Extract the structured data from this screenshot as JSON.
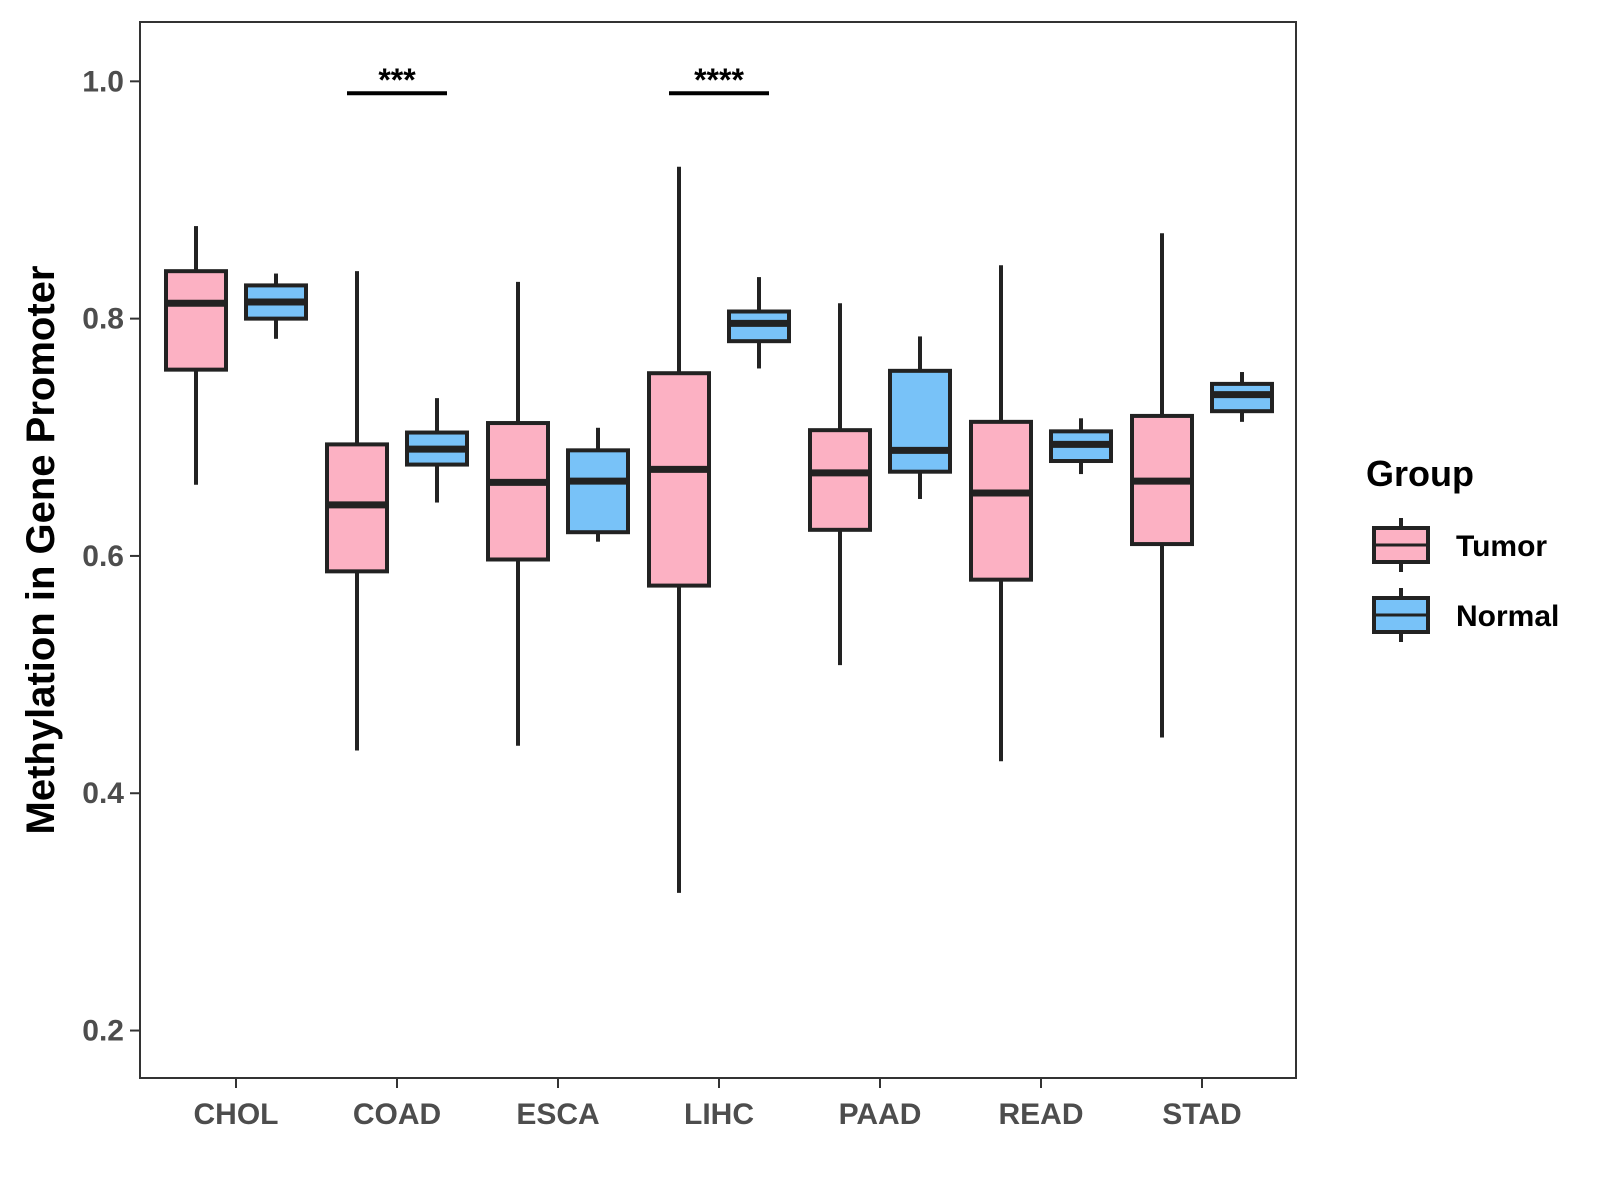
{
  "chart_data": {
    "type": "boxplot",
    "title": "",
    "xlabel": "",
    "ylabel": "Methylation in Gene Promoter",
    "ylim": [
      0.16,
      1.05
    ],
    "yticks": [
      0.2,
      0.4,
      0.6,
      0.8,
      1.0
    ],
    "ytick_labels": [
      "0.2",
      "0.4",
      "0.6",
      "0.8",
      "1.0"
    ],
    "categories": [
      "CHOL",
      "COAD",
      "ESCA",
      "LIHC",
      "PAAD",
      "READ",
      "STAD"
    ],
    "legend": {
      "title": "Group",
      "position": "right",
      "entries": [
        {
          "name": "Tumor",
          "color": "#fcb1c3"
        },
        {
          "name": "Normal",
          "color": "#78c2f8"
        }
      ]
    },
    "series": [
      {
        "name": "Tumor",
        "color": "#fcb1c3",
        "boxes": [
          {
            "min": 0.66,
            "q1": 0.757,
            "median": 0.813,
            "q3": 0.84,
            "max": 0.878
          },
          {
            "min": 0.436,
            "q1": 0.587,
            "median": 0.643,
            "q3": 0.694,
            "max": 0.84
          },
          {
            "min": 0.44,
            "q1": 0.597,
            "median": 0.662,
            "q3": 0.712,
            "max": 0.831
          },
          {
            "min": 0.316,
            "q1": 0.575,
            "median": 0.673,
            "q3": 0.754,
            "max": 0.928
          },
          {
            "min": 0.508,
            "q1": 0.622,
            "median": 0.67,
            "q3": 0.706,
            "max": 0.813
          },
          {
            "min": 0.427,
            "q1": 0.58,
            "median": 0.653,
            "q3": 0.713,
            "max": 0.845
          },
          {
            "min": 0.447,
            "q1": 0.61,
            "median": 0.663,
            "q3": 0.718,
            "max": 0.872
          }
        ]
      },
      {
        "name": "Normal",
        "color": "#78c2f8",
        "boxes": [
          {
            "min": 0.783,
            "q1": 0.8,
            "median": 0.814,
            "q3": 0.828,
            "max": 0.838
          },
          {
            "min": 0.645,
            "q1": 0.677,
            "median": 0.69,
            "q3": 0.704,
            "max": 0.733
          },
          {
            "min": 0.612,
            "q1": 0.62,
            "median": 0.663,
            "q3": 0.689,
            "max": 0.708
          },
          {
            "min": 0.758,
            "q1": 0.781,
            "median": 0.796,
            "q3": 0.806,
            "max": 0.835
          },
          {
            "min": 0.648,
            "q1": 0.671,
            "median": 0.689,
            "q3": 0.756,
            "max": 0.785
          },
          {
            "min": 0.669,
            "q1": 0.68,
            "median": 0.694,
            "q3": 0.705,
            "max": 0.716
          },
          {
            "min": 0.713,
            "q1": 0.722,
            "median": 0.736,
            "q3": 0.745,
            "max": 0.755
          }
        ]
      }
    ],
    "annotations": [
      {
        "category": "COAD",
        "label": "***",
        "y": 0.99
      },
      {
        "category": "LIHC",
        "label": "****",
        "y": 0.99
      }
    ]
  }
}
